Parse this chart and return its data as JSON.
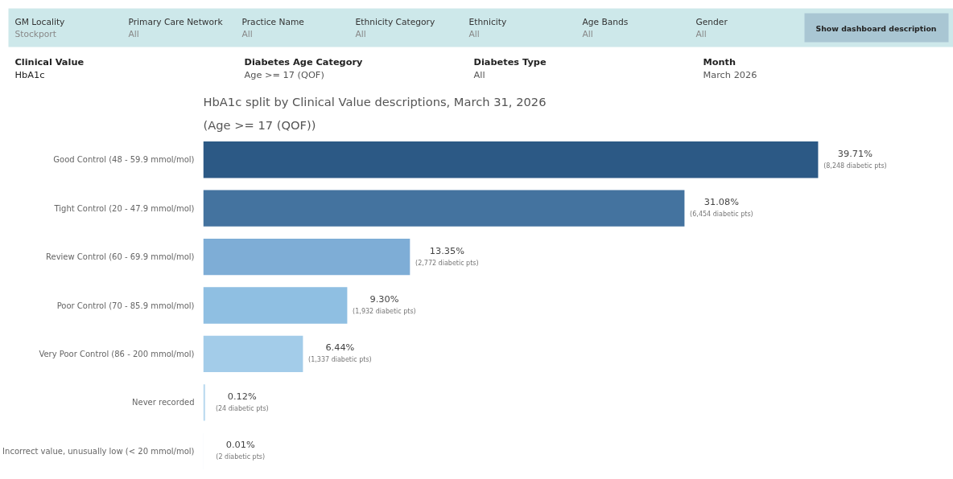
{
  "chart_data": {
    "type": "bar",
    "orientation": "horizontal",
    "title": "HbA1c split by Clinical Value descriptions, March 31, 2026",
    "subtitle": "(Age >= 17 (QOF))",
    "categories": [
      "Good Control (48 - 59.9 mmol/mol)",
      "Tight Control (20 - 47.9 mmol/mol)",
      "Review Control (60 - 69.9 mmol/mol)",
      "Poor Control (70 - 85.9 mmol/mol)",
      "Very Poor Control (86 - 200 mmol/mol)",
      "Never recorded",
      "Incorrect value, unusually low (< 20 mmol/mol)"
    ],
    "values": [
      39.71,
      31.08,
      13.35,
      9.3,
      6.44,
      0.12,
      0.01
    ],
    "colors": [
      "#2c5985",
      "#44739f",
      "#7eadd6",
      "#8fbfe2",
      "#a3cce9",
      "#b9d9ef",
      "#c8e1f2"
    ],
    "value_labels": [
      "39.71%\n(8,248 diabetic pts)",
      "31.08%\n(6,454 diabetic pts)",
      "13.35%\n(2,772 diabetic pts)",
      "9.30%\n(1,932 diabetic pts)",
      "6.44%\n(1,337 diabetic pts)",
      "0.12%\n(24 diabetic pts)",
      "0.01%\n(2 diabetic pts)"
    ],
    "grid": false,
    "annotations": [
      "GM Locality",
      "Stockport",
      "Primary Care Network",
      "All",
      "Practice Name",
      "All",
      "Ethnicity Category",
      "All",
      "Ethnicity",
      "All",
      "Age Bands",
      "All",
      "Gender",
      "All",
      "Show dashboard description",
      "Clinical Value",
      "HbA1c",
      "Diabetes Age Category",
      "Age >= 17 (QOF)",
      "Diabetes Type",
      "All",
      "Month",
      "March 2026"
    ]
  }
}
